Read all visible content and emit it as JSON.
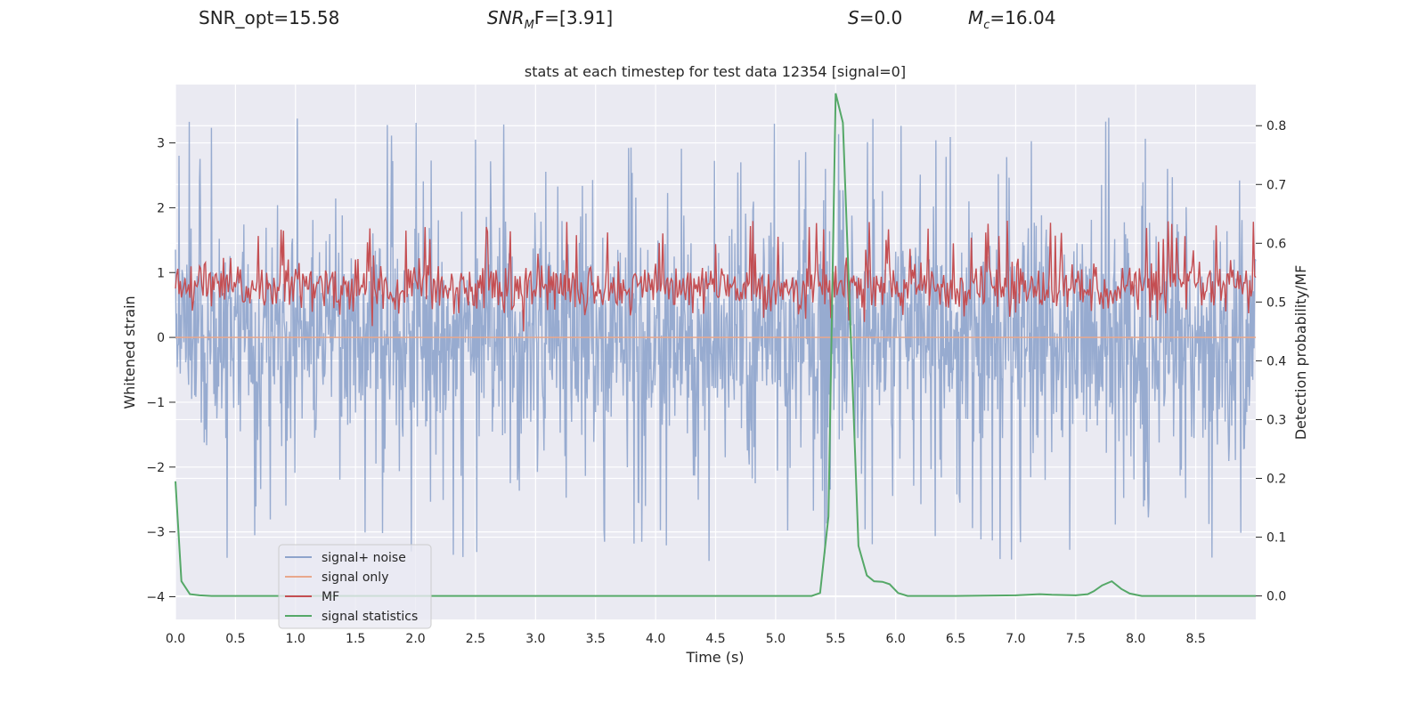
{
  "header": {
    "snr_opt": "SNR_opt=15.58",
    "snr_mf_base": "SNR",
    "snr_mf_sub": "M",
    "snr_mf_rest": "F=[3.91]",
    "s_base": "S",
    "s_rest": "=0.0",
    "mc_base": "M",
    "mc_sub": "c",
    "mc_rest": "=16.04"
  },
  "chart_data": {
    "type": "line",
    "title": "stats at each timestep for test data 12354 [signal=0]",
    "xlabel": "Time (s)",
    "ylabel": "Whitened strain",
    "y2label": "Detection probability/MF",
    "xlim": [
      0,
      9
    ],
    "ylim": [
      -4.35,
      3.9
    ],
    "y2lim": [
      -0.04,
      0.87
    ],
    "x_ticks": [
      "0.0",
      "0.5",
      "1.0",
      "1.5",
      "2.0",
      "2.5",
      "3.0",
      "3.5",
      "4.0",
      "4.5",
      "5.0",
      "5.5",
      "6.0",
      "6.5",
      "7.0",
      "7.5",
      "8.0",
      "8.5"
    ],
    "x_tick_values": [
      0,
      0.5,
      1,
      1.5,
      2,
      2.5,
      3,
      3.5,
      4,
      4.5,
      5,
      5.5,
      6,
      6.5,
      7,
      7.5,
      8,
      8.5
    ],
    "y_ticks": [
      "3",
      "2",
      "1",
      "0",
      "−1",
      "−2",
      "−3",
      "−4"
    ],
    "y_tick_values": [
      3,
      2,
      1,
      0,
      -1,
      -2,
      -3,
      -4
    ],
    "y2_ticks": [
      "0.8",
      "0.7",
      "0.6",
      "0.5",
      "0.4",
      "0.3",
      "0.2",
      "0.1",
      "0.0"
    ],
    "y2_tick_values": [
      0.8,
      0.7,
      0.6,
      0.5,
      0.4,
      0.3,
      0.2,
      0.1,
      0.0
    ],
    "legend": [
      "signal+ noise",
      "signal only",
      "MF",
      "signal statistics"
    ],
    "legend_position": "lower-left",
    "colors": {
      "signal_noise": "#8ea4cc",
      "signal_only": "#e9a88c",
      "mf": "#c44e52",
      "signal_statistics": "#55a868",
      "plot_bg": "#eaeaf2",
      "grid": "#ffffff"
    },
    "series": [
      {
        "name": "signal+ noise",
        "axis": "left",
        "style": "noise band",
        "approx_range": [
          -3.6,
          3.5
        ],
        "description_values": {
          "dense_band": [
            -1.4,
            1.4
          ]
        }
      },
      {
        "name": "signal only",
        "axis": "left",
        "x": [
          0,
          9
        ],
        "y": [
          0,
          0
        ]
      },
      {
        "name": "MF",
        "axis": "right",
        "style": "noise band",
        "approx_range": [
          0.45,
          0.6
        ]
      },
      {
        "name": "signal statistics",
        "axis": "right",
        "x": [
          0.0,
          0.05,
          0.12,
          0.2,
          0.3,
          0.5,
          1.0,
          2.0,
          3.0,
          4.0,
          5.0,
          5.3,
          5.37,
          5.44,
          5.5,
          5.56,
          5.63,
          5.69,
          5.76,
          5.82,
          5.89,
          5.95,
          6.02,
          6.1,
          6.5,
          7.0,
          7.1,
          7.2,
          7.3,
          7.5,
          7.6,
          7.65,
          7.72,
          7.8,
          7.88,
          7.95,
          8.05,
          8.5,
          9.0
        ],
        "y": [
          0.195,
          0.025,
          0.003,
          0.001,
          0.0,
          0.0,
          0.0,
          0.0,
          0.0,
          0.0,
          0.0,
          0.0,
          0.005,
          0.135,
          0.855,
          0.805,
          0.42,
          0.085,
          0.035,
          0.025,
          0.024,
          0.02,
          0.005,
          0.0,
          0.0,
          0.001,
          0.002,
          0.003,
          0.002,
          0.001,
          0.003,
          0.008,
          0.018,
          0.025,
          0.012,
          0.004,
          0.0,
          0.0,
          0.0
        ]
      }
    ]
  }
}
